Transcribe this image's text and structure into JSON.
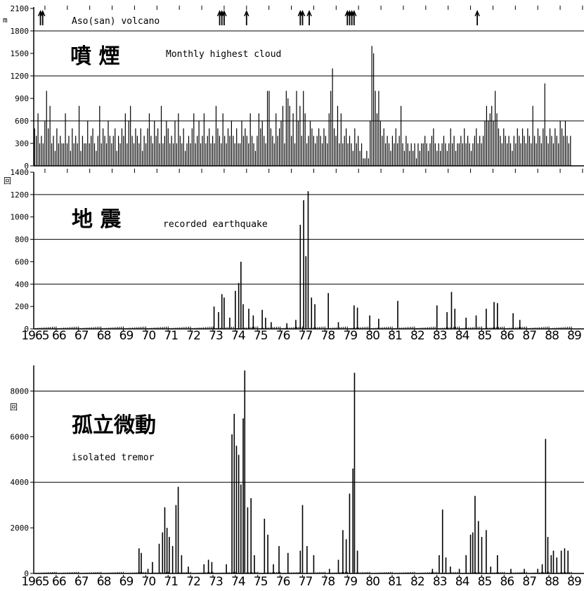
{
  "chart_data": [
    {
      "type": "bar",
      "title_jp": "噴 煙",
      "title_en": "Monthly highest cloud",
      "volcano_label": "Aso(san) volcano",
      "unit": "m",
      "ylim": [
        0,
        2100
      ],
      "yticks": [
        0,
        300,
        600,
        900,
        1200,
        1500,
        1800,
        2100
      ],
      "gridlines": [
        600,
        1200,
        1800
      ],
      "eruption_arrows": [
        1965.3,
        1965.4,
        1973.3,
        1973.4,
        1973.5,
        1974.5,
        1976.9,
        1977.0,
        1977.3,
        1979.0,
        1979.1,
        1979.2,
        1979.3,
        1984.8
      ],
      "series": [
        {
          "values": [
            500,
            400,
            700,
            300,
            400,
            300,
            600,
            1000,
            500,
            800,
            300,
            400,
            200,
            500,
            300,
            400,
            300,
            300,
            700,
            300,
            400,
            200,
            500,
            300,
            400,
            300,
            800,
            200,
            400,
            300,
            300,
            600,
            300,
            400,
            500,
            300,
            200,
            400,
            800,
            300,
            500,
            400,
            300,
            600,
            400,
            300,
            400,
            500,
            200,
            400,
            300,
            500,
            400,
            700,
            300,
            600,
            800,
            400,
            300,
            500,
            400,
            300,
            500,
            200,
            400,
            300,
            500,
            700,
            400,
            300,
            600,
            400,
            500,
            300,
            800,
            300,
            400,
            600,
            500,
            300,
            400,
            300,
            600,
            300,
            700,
            400,
            300,
            500,
            200,
            300,
            400,
            300,
            500,
            700,
            300,
            400,
            600,
            300,
            400,
            700,
            300,
            400,
            500,
            300,
            400,
            300,
            800,
            500,
            400,
            300,
            700,
            400,
            300,
            500,
            400,
            600,
            400,
            300,
            500,
            300,
            300,
            600,
            400,
            500,
            400,
            300,
            700,
            400,
            300,
            200,
            400,
            700,
            500,
            600,
            400,
            300,
            1000,
            1000,
            500,
            400,
            300,
            700,
            400,
            500,
            600,
            800,
            300,
            1000,
            900,
            800,
            400,
            700,
            300,
            1000,
            600,
            800,
            400,
            1000,
            700,
            300,
            400,
            600,
            500,
            400,
            300,
            400,
            500,
            400,
            300,
            500,
            400,
            300,
            700,
            1000,
            1300,
            500,
            400,
            800,
            300,
            700,
            300,
            400,
            500,
            300,
            400,
            300,
            200,
            500,
            300,
            400,
            200,
            300,
            100,
            100,
            200,
            100,
            600,
            1600,
            1500,
            1000,
            700,
            1000,
            600,
            400,
            500,
            300,
            400,
            300,
            200,
            400,
            300,
            500,
            300,
            400,
            800,
            300,
            200,
            400,
            300,
            200,
            300,
            200,
            300,
            100,
            300,
            200,
            300,
            300,
            400,
            300,
            200,
            300,
            400,
            500,
            300,
            200,
            300,
            200,
            300,
            400,
            300,
            200,
            300,
            500,
            300,
            400,
            200,
            300,
            300,
            400,
            300,
            500,
            300,
            400,
            300,
            200,
            300,
            400,
            500,
            300,
            400,
            300,
            400,
            600,
            800,
            600,
            700,
            800,
            600,
            1000,
            700,
            500,
            400,
            300,
            500,
            400,
            300,
            400,
            300,
            200,
            400,
            300,
            500,
            400,
            300,
            500,
            400,
            300,
            500,
            400,
            300,
            800,
            400,
            300,
            500,
            400,
            300,
            500,
            1100,
            400,
            300,
            500,
            400,
            300,
            500,
            400,
            300,
            600,
            500,
            400,
            600,
            400,
            300,
            400
          ]
        }
      ]
    },
    {
      "type": "bar",
      "title_jp": "地 震",
      "title_en": "recorded earthquake",
      "unit": "回",
      "ylim": [
        0,
        1400
      ],
      "yticks": [
        0,
        200,
        400,
        600,
        800,
        1000,
        1200,
        1400
      ],
      "gridlines": [
        400,
        800,
        1200
      ],
      "spikes": [
        {
          "x": 1973.05,
          "v": 200
        },
        {
          "x": 1973.25,
          "v": 150
        },
        {
          "x": 1973.4,
          "v": 310
        },
        {
          "x": 1973.5,
          "v": 280
        },
        {
          "x": 1973.75,
          "v": 100
        },
        {
          "x": 1974.0,
          "v": 340
        },
        {
          "x": 1974.15,
          "v": 410
        },
        {
          "x": 1974.25,
          "v": 600
        },
        {
          "x": 1974.35,
          "v": 220
        },
        {
          "x": 1974.6,
          "v": 180
        },
        {
          "x": 1974.8,
          "v": 120
        },
        {
          "x": 1975.2,
          "v": 170
        },
        {
          "x": 1975.35,
          "v": 100
        },
        {
          "x": 1975.6,
          "v": 60
        },
        {
          "x": 1976.3,
          "v": 50
        },
        {
          "x": 1976.7,
          "v": 80
        },
        {
          "x": 1976.9,
          "v": 930
        },
        {
          "x": 1977.05,
          "v": 1150
        },
        {
          "x": 1977.15,
          "v": 650
        },
        {
          "x": 1977.25,
          "v": 1230
        },
        {
          "x": 1977.4,
          "v": 280
        },
        {
          "x": 1977.55,
          "v": 220
        },
        {
          "x": 1978.15,
          "v": 320
        },
        {
          "x": 1978.6,
          "v": 60
        },
        {
          "x": 1979.3,
          "v": 210
        },
        {
          "x": 1979.45,
          "v": 190
        },
        {
          "x": 1980.0,
          "v": 120
        },
        {
          "x": 1980.4,
          "v": 90
        },
        {
          "x": 1981.25,
          "v": 250
        },
        {
          "x": 1983.0,
          "v": 210
        },
        {
          "x": 1983.45,
          "v": 150
        },
        {
          "x": 1983.65,
          "v": 330
        },
        {
          "x": 1983.8,
          "v": 180
        },
        {
          "x": 1984.3,
          "v": 100
        },
        {
          "x": 1984.75,
          "v": 120
        },
        {
          "x": 1985.2,
          "v": 180
        },
        {
          "x": 1985.55,
          "v": 240
        },
        {
          "x": 1985.7,
          "v": 230
        },
        {
          "x": 1986.4,
          "v": 140
        },
        {
          "x": 1986.7,
          "v": 80
        }
      ],
      "baseline": 15
    },
    {
      "type": "bar",
      "title_jp": "孤立微動",
      "title_en": "isolated tremor",
      "unit": "回",
      "ylim": [
        0,
        9000
      ],
      "yticks": [
        0,
        2000,
        4000,
        6000,
        8000
      ],
      "gridlines": [
        4000,
        8000
      ],
      "spikes": [
        {
          "x": 1969.7,
          "v": 1100
        },
        {
          "x": 1969.8,
          "v": 900
        },
        {
          "x": 1970.1,
          "v": 200
        },
        {
          "x": 1970.3,
          "v": 500
        },
        {
          "x": 1970.6,
          "v": 1300
        },
        {
          "x": 1970.75,
          "v": 1800
        },
        {
          "x": 1970.85,
          "v": 2900
        },
        {
          "x": 1970.95,
          "v": 2000
        },
        {
          "x": 1971.05,
          "v": 1600
        },
        {
          "x": 1971.2,
          "v": 1200
        },
        {
          "x": 1971.35,
          "v": 3000
        },
        {
          "x": 1971.45,
          "v": 3800
        },
        {
          "x": 1971.6,
          "v": 800
        },
        {
          "x": 1971.9,
          "v": 300
        },
        {
          "x": 1972.6,
          "v": 400
        },
        {
          "x": 1972.8,
          "v": 600
        },
        {
          "x": 1972.95,
          "v": 500
        },
        {
          "x": 1973.6,
          "v": 400
        },
        {
          "x": 1973.85,
          "v": 6100
        },
        {
          "x": 1973.95,
          "v": 7000
        },
        {
          "x": 1974.05,
          "v": 5600
        },
        {
          "x": 1974.15,
          "v": 5200
        },
        {
          "x": 1974.25,
          "v": 3900
        },
        {
          "x": 1974.35,
          "v": 6800
        },
        {
          "x": 1974.42,
          "v": 8900
        },
        {
          "x": 1974.55,
          "v": 2900
        },
        {
          "x": 1974.7,
          "v": 3300
        },
        {
          "x": 1974.85,
          "v": 800
        },
        {
          "x": 1975.3,
          "v": 2400
        },
        {
          "x": 1975.45,
          "v": 1700
        },
        {
          "x": 1975.7,
          "v": 400
        },
        {
          "x": 1975.95,
          "v": 1200
        },
        {
          "x": 1976.35,
          "v": 900
        },
        {
          "x": 1976.9,
          "v": 1000
        },
        {
          "x": 1977.0,
          "v": 3000
        },
        {
          "x": 1977.2,
          "v": 1200
        },
        {
          "x": 1977.5,
          "v": 800
        },
        {
          "x": 1978.2,
          "v": 200
        },
        {
          "x": 1978.6,
          "v": 600
        },
        {
          "x": 1978.8,
          "v": 1900
        },
        {
          "x": 1978.95,
          "v": 1500
        },
        {
          "x": 1979.1,
          "v": 3500
        },
        {
          "x": 1979.25,
          "v": 4600
        },
        {
          "x": 1979.32,
          "v": 8800
        },
        {
          "x": 1979.45,
          "v": 1000
        },
        {
          "x": 1982.8,
          "v": 200
        },
        {
          "x": 1983.1,
          "v": 800
        },
        {
          "x": 1983.25,
          "v": 2800
        },
        {
          "x": 1983.4,
          "v": 700
        },
        {
          "x": 1983.6,
          "v": 300
        },
        {
          "x": 1984.0,
          "v": 200
        },
        {
          "x": 1984.3,
          "v": 800
        },
        {
          "x": 1984.5,
          "v": 1700
        },
        {
          "x": 1984.6,
          "v": 1800
        },
        {
          "x": 1984.7,
          "v": 3400
        },
        {
          "x": 1984.85,
          "v": 2300
        },
        {
          "x": 1985.0,
          "v": 1600
        },
        {
          "x": 1985.2,
          "v": 1900
        },
        {
          "x": 1985.4,
          "v": 300
        },
        {
          "x": 1985.7,
          "v": 800
        },
        {
          "x": 1986.3,
          "v": 200
        },
        {
          "x": 1986.9,
          "v": 200
        },
        {
          "x": 1987.5,
          "v": 200
        },
        {
          "x": 1987.7,
          "v": 400
        },
        {
          "x": 1987.85,
          "v": 5900
        },
        {
          "x": 1987.95,
          "v": 1600
        },
        {
          "x": 1988.1,
          "v": 800
        },
        {
          "x": 1988.2,
          "v": 1000
        },
        {
          "x": 1988.35,
          "v": 700
        },
        {
          "x": 1988.55,
          "v": 1000
        },
        {
          "x": 1988.7,
          "v": 1100
        },
        {
          "x": 1988.85,
          "v": 1000
        }
      ],
      "baseline": 50
    }
  ],
  "x_axis": {
    "start_label": "1965",
    "labels": [
      "1965",
      "66",
      "67",
      "68",
      "69",
      "70",
      "71",
      "72",
      "73",
      "74",
      "75",
      "76",
      "77",
      "78",
      "79",
      "80",
      "81",
      "82",
      "83",
      "84",
      "85",
      "86",
      "87",
      "88",
      "89"
    ],
    "range": [
      1965,
      1989
    ]
  }
}
